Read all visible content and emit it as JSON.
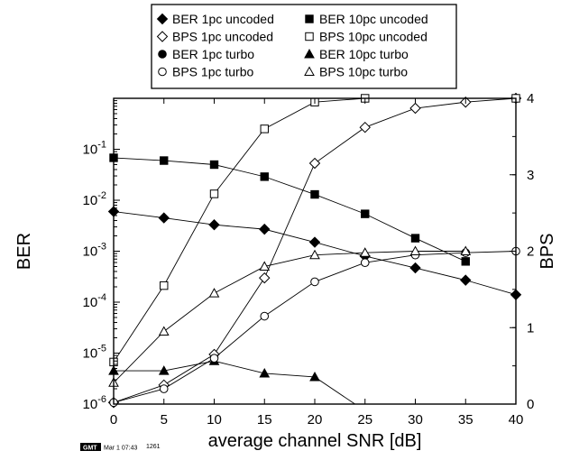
{
  "chart_data": {
    "type": "line",
    "xlabel": "average channel SNR [dB]",
    "ylabel": "BER",
    "y2label": "BPS",
    "xlim": [
      0,
      40
    ],
    "ylim_log": [
      1e-06,
      1
    ],
    "y2lim": [
      0,
      4
    ],
    "x_ticks": [
      "0",
      "5",
      "10",
      "15",
      "20",
      "25",
      "30",
      "35",
      "40"
    ],
    "y_ticks": [
      {
        "base": "10",
        "exp": "-1"
      },
      {
        "base": "10",
        "exp": "-2"
      },
      {
        "base": "10",
        "exp": "-3"
      },
      {
        "base": "10",
        "exp": "-4"
      },
      {
        "base": "10",
        "exp": "-5"
      },
      {
        "base": "10",
        "exp": "-6"
      }
    ],
    "y2_ticks": [
      "4",
      "3",
      "2",
      "1",
      "0"
    ],
    "grid": false,
    "legend_position": "top-center",
    "legend_columns": 2,
    "series": [
      {
        "name": "BER 1pc uncoded",
        "axis": "left",
        "marker": "diamond-filled",
        "x": [
          0,
          5,
          10,
          15,
          20,
          25,
          30,
          35,
          40
        ],
        "y": [
          0.006,
          0.0045,
          0.0033,
          0.0027,
          0.0015,
          0.0008,
          0.00047,
          0.00027,
          0.00014
        ]
      },
      {
        "name": "BER 10pc uncoded",
        "axis": "left",
        "marker": "square-filled",
        "x": [
          0,
          5,
          10,
          15,
          20,
          25,
          30,
          35
        ],
        "y": [
          0.068,
          0.06,
          0.05,
          0.029,
          0.013,
          0.0054,
          0.0018,
          0.00063
        ]
      },
      {
        "name": "BER 1pc turbo",
        "axis": "left",
        "marker": "circle-filled",
        "x": [],
        "y": []
      },
      {
        "name": "BER 10pc turbo",
        "axis": "left",
        "marker": "triangle-filled",
        "x": [
          0,
          5,
          10,
          15,
          20,
          24
        ],
        "y": [
          4.5e-06,
          4.5e-06,
          7e-06,
          4e-06,
          3.4e-06,
          1e-06
        ]
      },
      {
        "name": "BPS 1pc uncoded",
        "axis": "right",
        "marker": "diamond-open",
        "x": [
          0,
          5,
          10,
          15,
          20,
          25,
          30,
          35,
          40
        ],
        "y": [
          0.02,
          0.25,
          0.65,
          1.65,
          3.15,
          3.62,
          3.87,
          3.95,
          4.0
        ]
      },
      {
        "name": "BPS 10pc uncoded",
        "axis": "right",
        "marker": "square-open",
        "x": [
          0,
          5,
          10,
          15,
          20,
          25,
          40
        ],
        "y": [
          0.55,
          1.55,
          2.75,
          3.6,
          3.95,
          4.0,
          4.0
        ]
      },
      {
        "name": "BPS 1pc turbo",
        "axis": "right",
        "marker": "circle-open",
        "x": [
          0,
          5,
          10,
          15,
          20,
          25,
          30,
          35,
          40
        ],
        "y": [
          0.02,
          0.2,
          0.6,
          1.15,
          1.6,
          1.85,
          1.95,
          1.98,
          2.0
        ]
      },
      {
        "name": "BPS 10pc turbo",
        "axis": "right",
        "marker": "triangle-open",
        "x": [
          0,
          5,
          10,
          15,
          20,
          25,
          30,
          35
        ],
        "y": [
          0.28,
          0.95,
          1.45,
          1.8,
          1.95,
          1.98,
          2.0,
          2.0
        ]
      }
    ]
  },
  "stamp": {
    "label": "GMT",
    "text": "Mar  1 07:43",
    "number": "1261"
  }
}
